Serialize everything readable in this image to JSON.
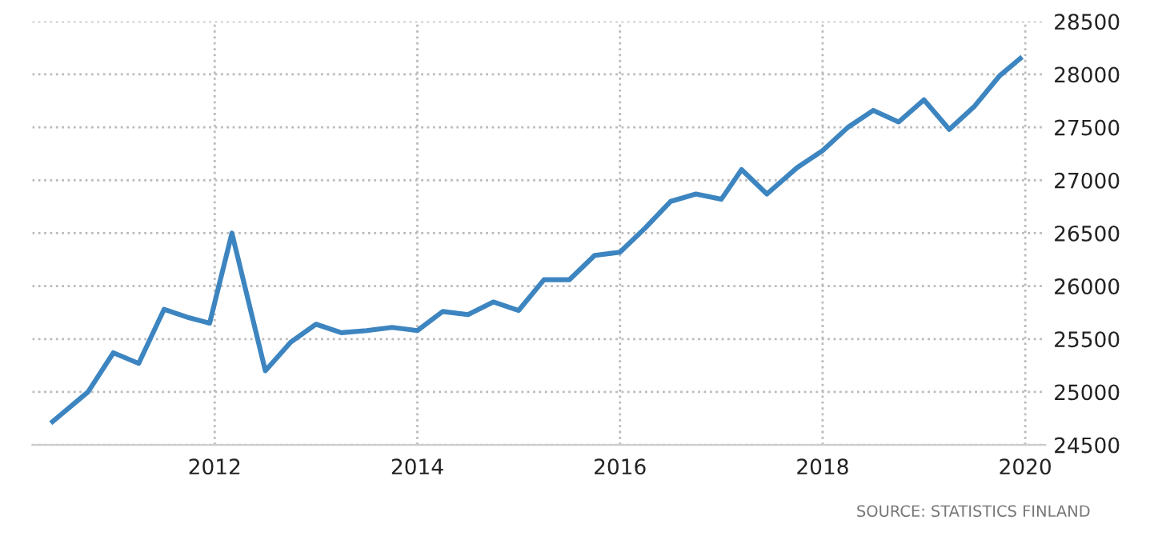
{
  "chart_data": {
    "type": "line",
    "x": [
      2010.4,
      2010.75,
      2011.0,
      2011.25,
      2011.5,
      2011.75,
      2011.95,
      2012.17,
      2012.5,
      2012.75,
      2013.0,
      2013.25,
      2013.5,
      2013.75,
      2014.0,
      2014.25,
      2014.5,
      2014.75,
      2015.0,
      2015.25,
      2015.5,
      2015.75,
      2016.0,
      2016.25,
      2016.5,
      2016.75,
      2017.0,
      2017.2,
      2017.45,
      2017.75,
      2018.0,
      2018.25,
      2018.5,
      2018.75,
      2019.0,
      2019.25,
      2019.5,
      2019.75,
      2019.95
    ],
    "series": [
      {
        "color": "#3d85c0",
        "values": [
          24720,
          25000,
          25370,
          25270,
          25780,
          25700,
          25650,
          26500,
          25200,
          25470,
          25640,
          25560,
          25580,
          25610,
          25580,
          25760,
          25730,
          25850,
          25770,
          26060,
          26060,
          26290,
          26320,
          26550,
          26800,
          26870,
          26820,
          27100,
          26870,
          27120,
          27280,
          27500,
          27660,
          27550,
          27760,
          27480,
          27700,
          27990,
          28150
        ]
      }
    ],
    "xlim": [
      2010.2,
      2020.2
    ],
    "xticks": [
      2012,
      2014,
      2016,
      2018,
      2020
    ],
    "ylim": [
      24500,
      28500
    ],
    "yticks": [
      24500,
      25000,
      25500,
      26000,
      26500,
      27000,
      27500,
      28000,
      28500
    ],
    "grid": true,
    "legend": false,
    "marker": "none",
    "line_style": "solid",
    "annotations": [
      "SOURCE: STATISTICS FINLAND"
    ]
  }
}
